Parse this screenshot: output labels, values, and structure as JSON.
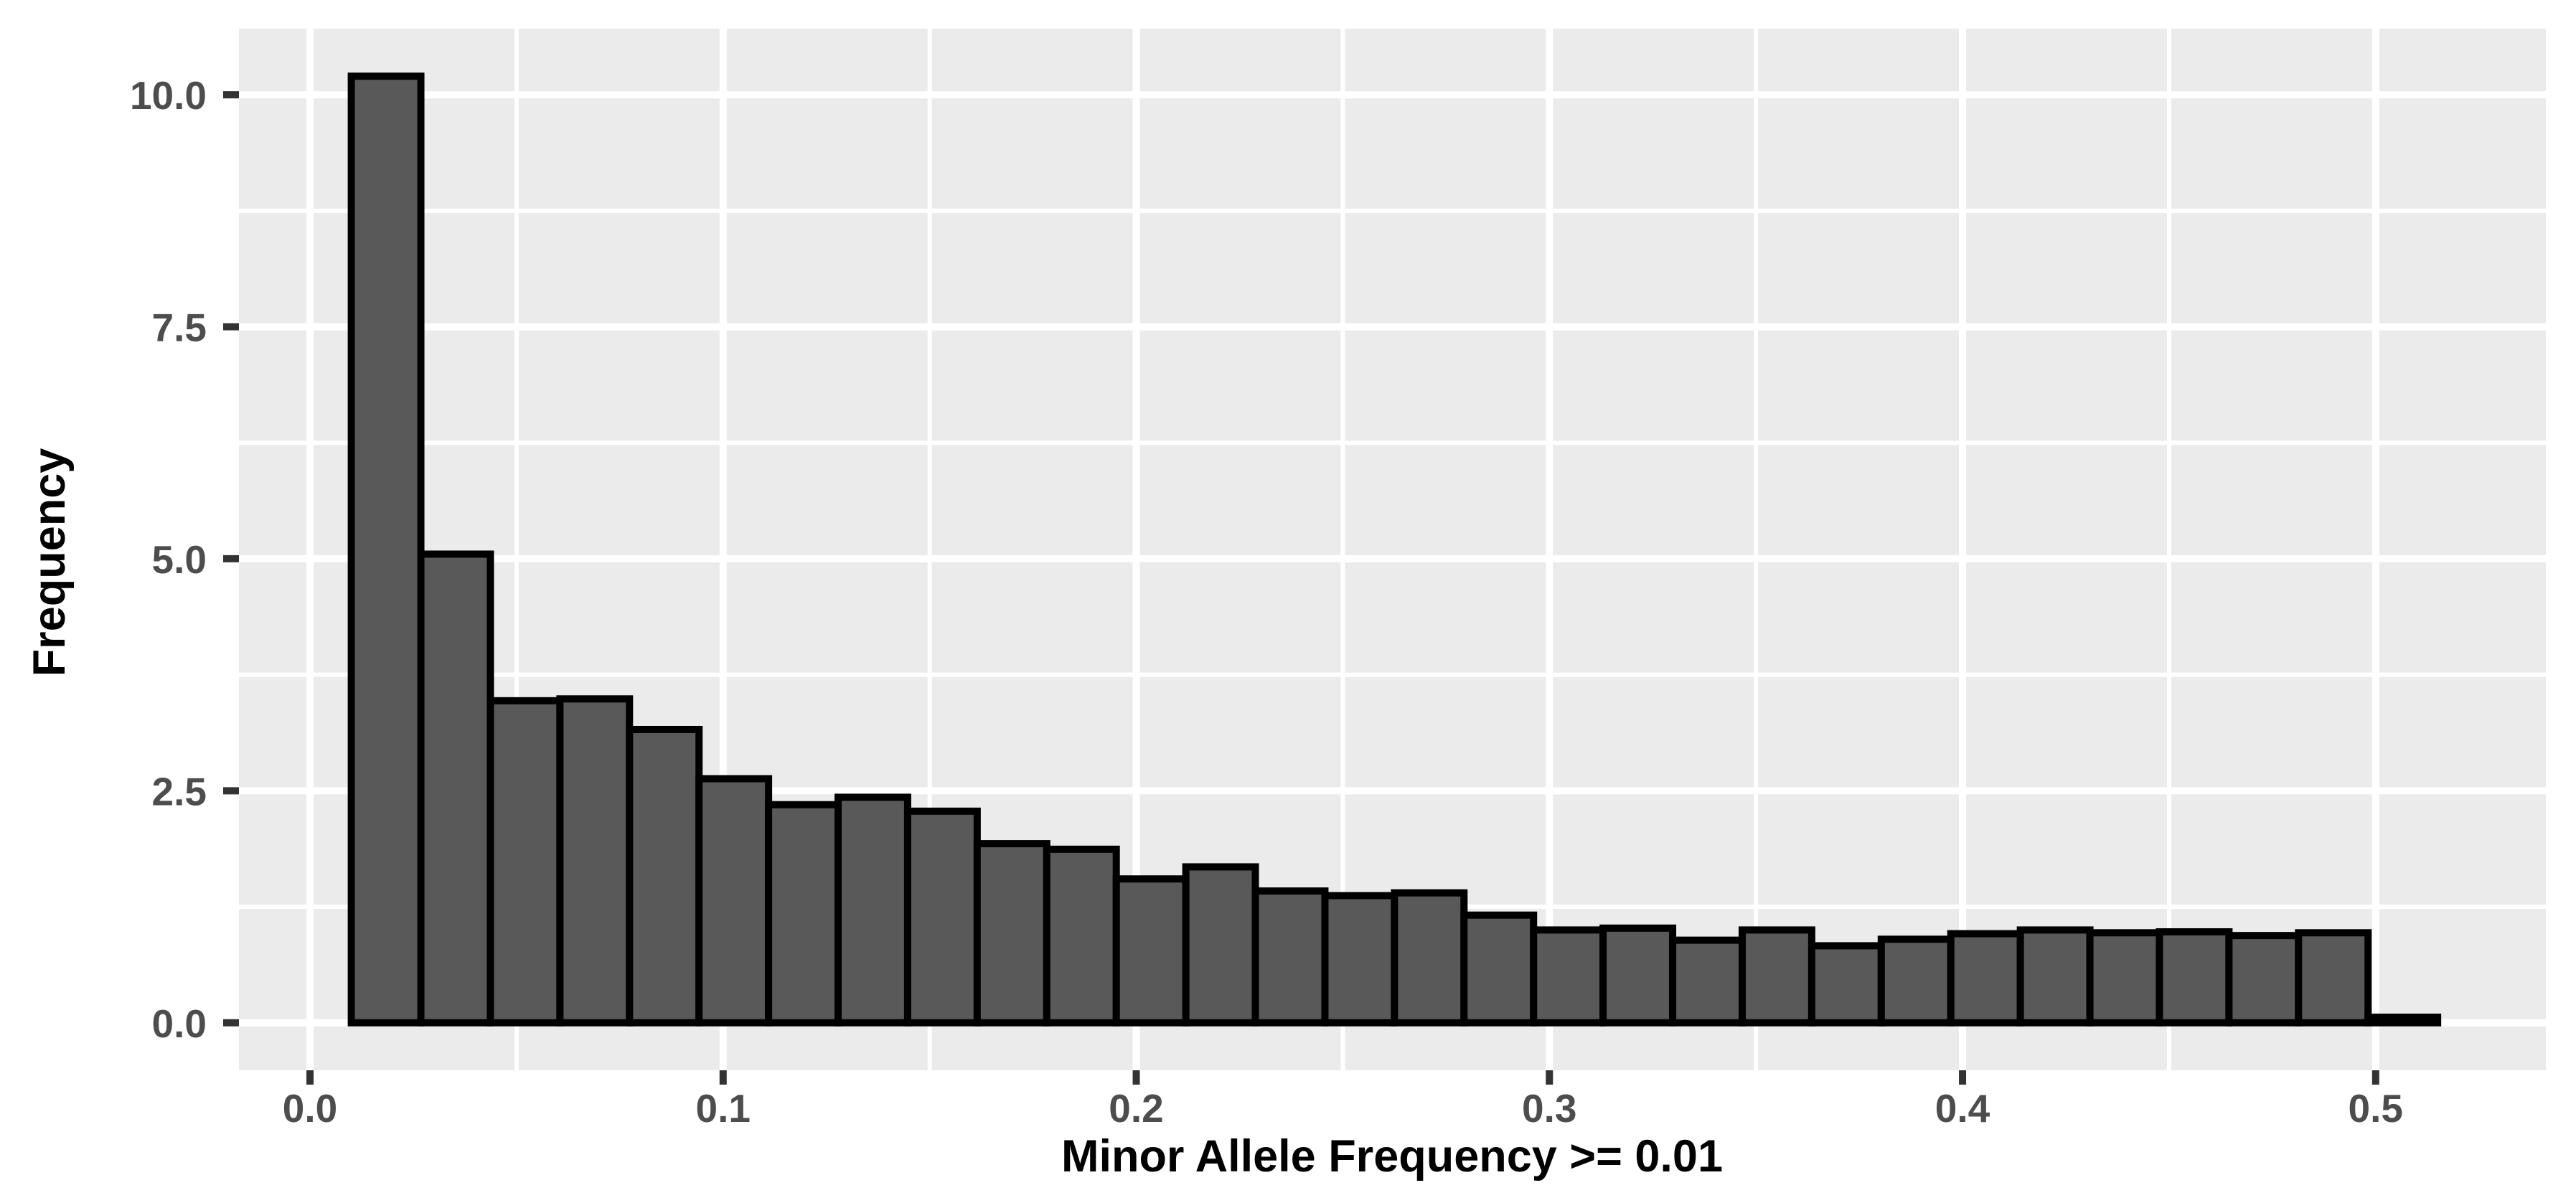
{
  "chart_data": {
    "type": "bar",
    "subtype": "histogram",
    "title": "",
    "xlabel": "Minor Allele Frequency >= 0.01",
    "ylabel": "Frequency",
    "bin_start": 0.01,
    "bin_width": 0.0168333,
    "bin_count": 30,
    "values": [
      10.2,
      5.05,
      3.47,
      3.49,
      3.16,
      2.63,
      2.35,
      2.43,
      2.28,
      1.93,
      1.87,
      1.55,
      1.68,
      1.42,
      1.37,
      1.4,
      1.16,
      1.0,
      1.02,
      0.89,
      1.0,
      0.83,
      0.9,
      0.96,
      1.0,
      0.97,
      0.98,
      0.94,
      0.97,
      0.06
    ],
    "x_ticks": [
      0.0,
      0.1,
      0.2,
      0.3,
      0.4,
      0.5
    ],
    "x_tick_labels": [
      "0.0",
      "0.1",
      "0.2",
      "0.3",
      "0.4",
      "0.5"
    ],
    "x_minor_ticks": [
      0.05,
      0.15,
      0.25,
      0.35,
      0.45
    ],
    "y_ticks": [
      0.0,
      2.5,
      5.0,
      7.5,
      10.0
    ],
    "y_tick_labels": [
      "0.0",
      "2.5",
      "5.0",
      "7.5",
      "10.0"
    ],
    "y_minor_ticks": [
      1.25,
      3.75,
      6.25,
      8.75
    ],
    "xlim": [
      -0.0172,
      0.5412
    ],
    "ylim": [
      -0.512,
      10.712
    ],
    "grid": true,
    "legend": false,
    "colors": {
      "figure_bg": "#FFFFFF",
      "panel_bg": "#EBEBEB",
      "grid_major": "#FFFFFF",
      "grid_minor": "#FFFFFF",
      "bar_fill": "#595959",
      "bar_stroke": "#000000",
      "tick_mark": "#333333",
      "tick_label": "#4D4D4D",
      "axis_title": "#000000"
    }
  }
}
